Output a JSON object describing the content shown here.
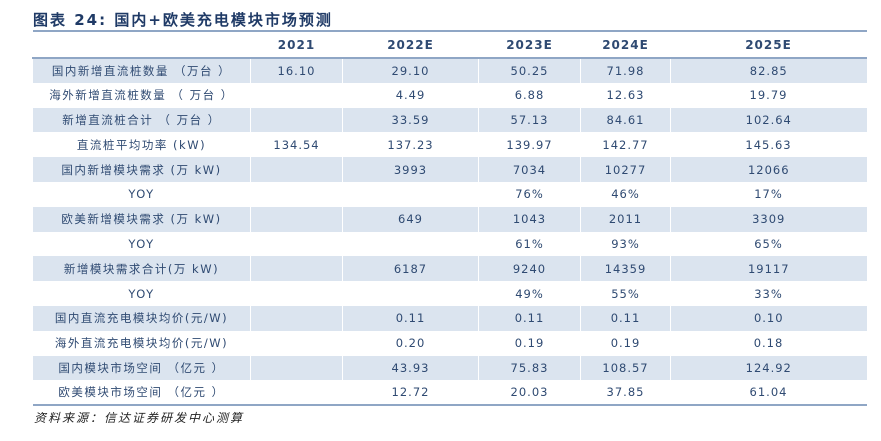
{
  "title": "图表 24: 国内+欧美充电模块市场预测",
  "table": {
    "headers": [
      "",
      "2021",
      "2022E",
      "2023E",
      "2024E",
      "2025E"
    ],
    "rows": [
      [
        "国内新增直流桩数量 （万台 ）",
        "16.10",
        "29.10",
        "50.25",
        "71.98",
        "82.85"
      ],
      [
        "海外新增直流桩数量 （ 万台 ）",
        "",
        "4.49",
        "6.88",
        "12.63",
        "19.79"
      ],
      [
        "新增直流桩合计 （ 万台 ）",
        "",
        "33.59",
        "57.13",
        "84.61",
        "102.64"
      ],
      [
        "直流桩平均功率 (kW)",
        "134.54",
        "137.23",
        "139.97",
        "142.77",
        "145.63"
      ],
      [
        "国内新增模块需求 (万 kW)",
        "",
        "3993",
        "7034",
        "10277",
        "12066"
      ],
      [
        "YOY",
        "",
        "",
        "76%",
        "46%",
        "17%"
      ],
      [
        "欧美新增模块需求 (万 kW)",
        "",
        "649",
        "1043",
        "2011",
        "3309"
      ],
      [
        "YOY",
        "",
        "",
        "61%",
        "93%",
        "65%"
      ],
      [
        "新增模块需求合计(万 kW)",
        "",
        "6187",
        "9240",
        "14359",
        "19117"
      ],
      [
        "YOY",
        "",
        "",
        "49%",
        "55%",
        "33%"
      ],
      [
        "国内直流充电模块均价(元/W)",
        "",
        "0.11",
        "0.11",
        "0.11",
        "0.10"
      ],
      [
        "海外直流充电模块均价(元/W)",
        "",
        "0.20",
        "0.19",
        "0.19",
        "0.18"
      ],
      [
        "国内模块市场空间 （亿元 ）",
        "",
        "43.93",
        "75.83",
        "108.57",
        "124.92"
      ],
      [
        "欧美模块市场空间 （亿元 ）",
        "",
        "12.72",
        "20.03",
        "37.85",
        "61.04"
      ]
    ]
  },
  "source": "资料来源：信达证券研发中心测算"
}
